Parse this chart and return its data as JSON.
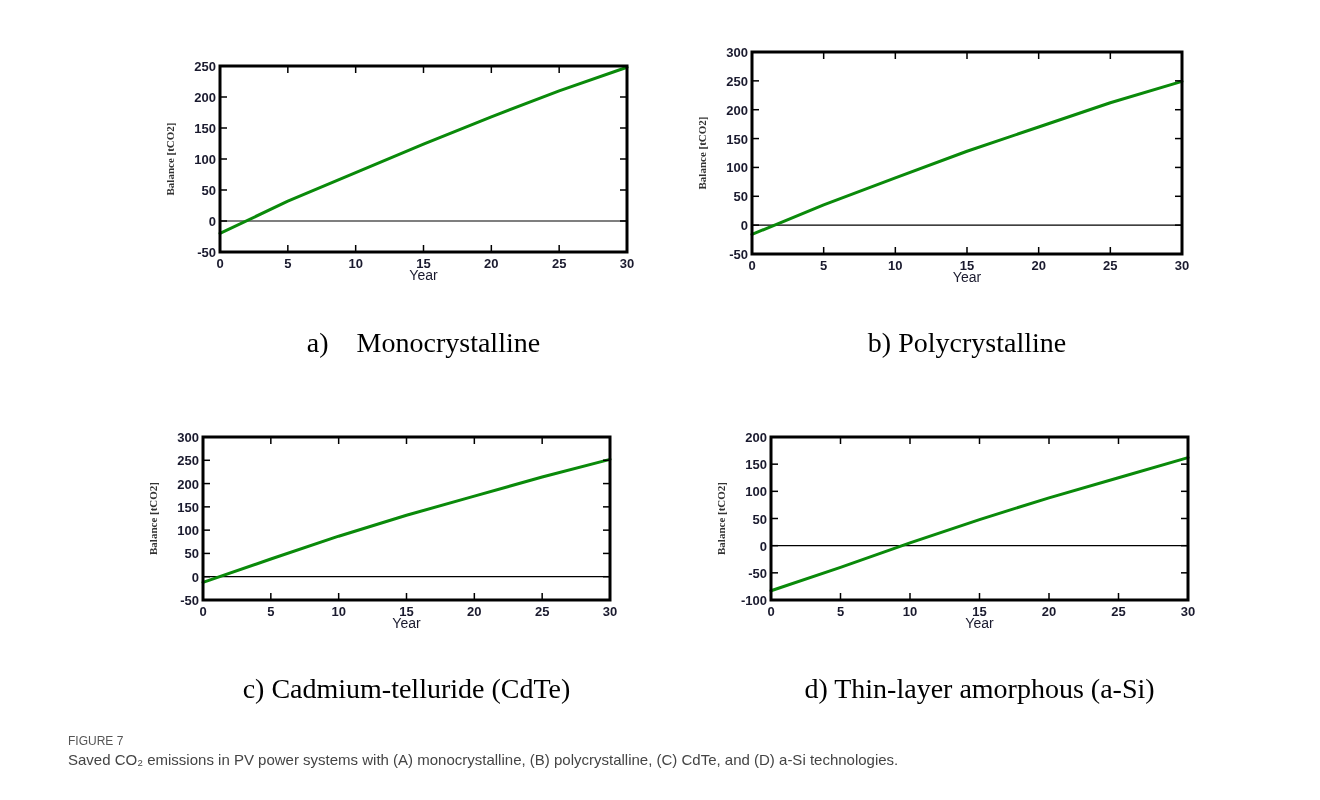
{
  "chart_data": [
    {
      "type": "line",
      "title": "a)    Monocrystalline",
      "xlabel": "Year",
      "ylabel": "Balance [tCO2]",
      "x": [
        0,
        5,
        10,
        15,
        20,
        25,
        30
      ],
      "series": [
        {
          "color": "#0a8a0a",
          "values": [
            -20,
            32,
            78,
            124,
            168,
            210,
            248
          ]
        }
      ],
      "xlim": [
        0,
        30
      ],
      "xticks": [
        0,
        5,
        10,
        15,
        20,
        25,
        30
      ],
      "ylim": [
        -50,
        250
      ],
      "yticks": [
        -50,
        0,
        50,
        100,
        150,
        200,
        250
      ],
      "ref_lines": [
        {
          "axis": "y",
          "value": 0,
          "color": "#000000"
        }
      ],
      "grid": false,
      "marker": "none",
      "line_style": "solid"
    },
    {
      "type": "line",
      "title": "b) Polycrystalline",
      "xlabel": "Year",
      "ylabel": "Balance [tCO2]",
      "x": [
        0,
        5,
        10,
        15,
        20,
        25,
        30
      ],
      "series": [
        {
          "color": "#0a8a0a",
          "values": [
            -16,
            35,
            82,
            128,
            170,
            212,
            249
          ]
        }
      ],
      "xlim": [
        0,
        30
      ],
      "xticks": [
        0,
        5,
        10,
        15,
        20,
        25,
        30
      ],
      "ylim": [
        -50,
        300
      ],
      "yticks": [
        -50,
        0,
        50,
        100,
        150,
        200,
        250,
        300
      ],
      "ref_lines": [
        {
          "axis": "y",
          "value": 0,
          "color": "#000000"
        }
      ],
      "grid": false,
      "marker": "none",
      "line_style": "solid"
    },
    {
      "type": "line",
      "title": "c) Cadmium-telluride (CdTe)",
      "xlabel": "Year",
      "ylabel": "Balance [tCO2]",
      "x": [
        0,
        5,
        10,
        15,
        20,
        25,
        30
      ],
      "series": [
        {
          "color": "#0a8a0a",
          "values": [
            -12,
            38,
            87,
            132,
            173,
            214,
            252
          ]
        }
      ],
      "xlim": [
        0,
        30
      ],
      "xticks": [
        0,
        5,
        10,
        15,
        20,
        25,
        30
      ],
      "ylim": [
        -50,
        300
      ],
      "yticks": [
        -50,
        0,
        50,
        100,
        150,
        200,
        250,
        300
      ],
      "ref_lines": [
        {
          "axis": "y",
          "value": 0,
          "color": "#000000"
        }
      ],
      "grid": false,
      "marker": "none",
      "line_style": "solid"
    },
    {
      "type": "line",
      "title": "d) Thin-layer amorphous (a-Si)",
      "xlabel": "Year",
      "ylabel": "Balance [tCO2]",
      "x": [
        0,
        5,
        10,
        15,
        20,
        25,
        30
      ],
      "series": [
        {
          "color": "#0a8a0a",
          "values": [
            -83,
            -40,
            5,
            48,
            88,
            125,
            162
          ]
        }
      ],
      "xlim": [
        0,
        30
      ],
      "xticks": [
        0,
        5,
        10,
        15,
        20,
        25,
        30
      ],
      "ylim": [
        -100,
        200
      ],
      "yticks": [
        -100,
        -50,
        0,
        50,
        100,
        150,
        200
      ],
      "ref_lines": [
        {
          "axis": "y",
          "value": 0,
          "color": "#000000"
        }
      ],
      "grid": false,
      "marker": "none",
      "line_style": "solid"
    },
    {
      "type": "other",
      "annotations": [
        "FIGURE 7",
        "Saved CO₂ emissions in PV power systems with (A) monocrystalline, (B) polycrystalline, (C) CdTe, and (D) a-Si technologies."
      ]
    }
  ]
}
